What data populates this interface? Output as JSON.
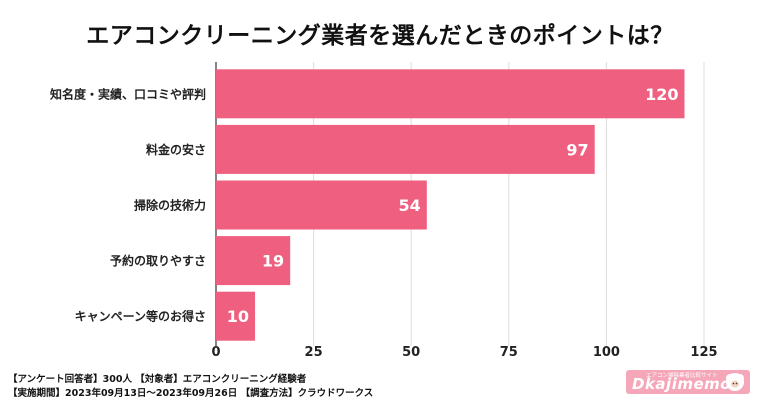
{
  "chart_data": {
    "type": "bar",
    "orientation": "horizontal",
    "title": "エアコンクリーニング業者を選んだときのポイントは？",
    "categories": [
      "知名度・実績、口コミや評判",
      "料金の安さ",
      "掃除の技術力",
      "予約の取りやすさ",
      "キャンペーン等のお得さ"
    ],
    "values": [
      120,
      97,
      54,
      19,
      10
    ],
    "xlim": [
      0,
      125
    ],
    "xticks": [
      0,
      25,
      50,
      75,
      100,
      125
    ],
    "grid": true,
    "bar_color": "#ef5f7f",
    "label_color": "#ffffff"
  },
  "footer": {
    "line1": "【アンケート回答者】300人 【対象者】エアコンクリーニング経験者",
    "line2": "【実施期間】2023年09月13日〜2023年09月26日 【調査方法】クラウドワークス"
  },
  "logo": {
    "tagline": "エアコン掃除業者比較サイト",
    "brand": "Dkajimemo"
  }
}
